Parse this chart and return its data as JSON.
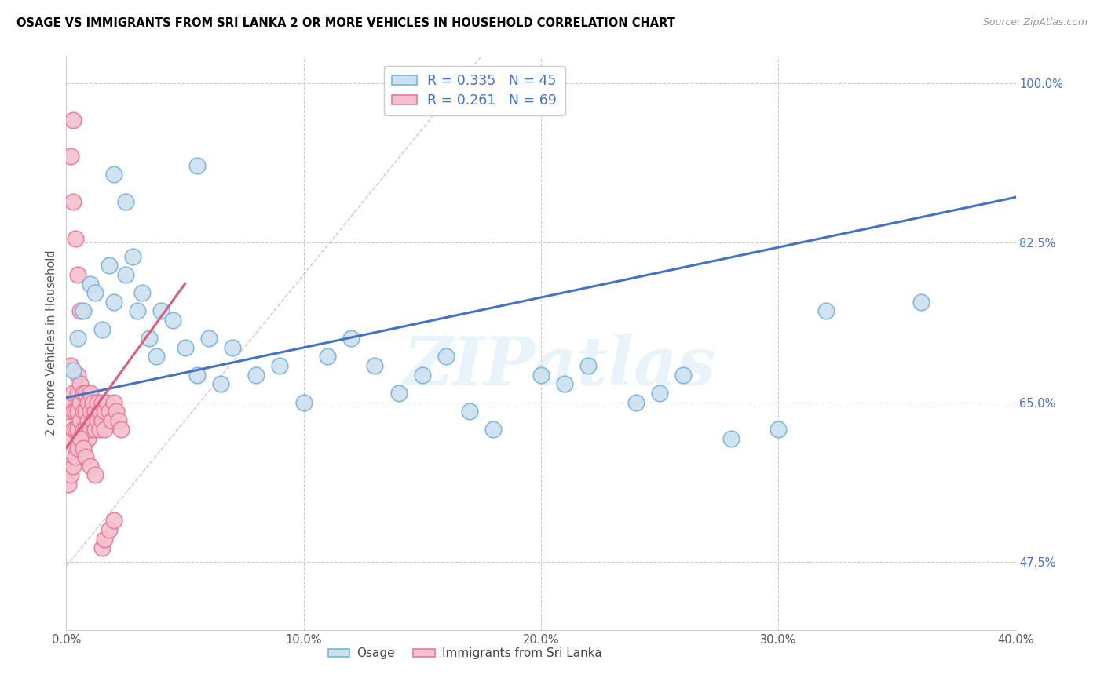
{
  "title": "OSAGE VS IMMIGRANTS FROM SRI LANKA 2 OR MORE VEHICLES IN HOUSEHOLD CORRELATION CHART",
  "source": "Source: ZipAtlas.com",
  "ylabel": "2 or more Vehicles in Household",
  "xlim": [
    0.0,
    0.4
  ],
  "ylim": [
    0.4,
    1.03
  ],
  "ytick_vals": [
    0.475,
    0.65,
    0.825,
    1.0
  ],
  "ytick_labels": [
    "47.5%",
    "65.0%",
    "82.5%",
    "100.0%"
  ],
  "xtick_vals": [
    0.0,
    0.1,
    0.2,
    0.3,
    0.4
  ],
  "xtick_labels": [
    "0.0%",
    "10.0%",
    "20.0%",
    "30.0%",
    "40.0%"
  ],
  "osage_edge_color": "#7ab3d9",
  "osage_face_color": "#cce0f0",
  "srilanka_edge_color": "#e8799a",
  "srilanka_face_color": "#f5c0ce",
  "trend_osage_color": "#4472c4",
  "trend_srilanka_color": "#d9607a",
  "diagonal_color": "#d0a0a8",
  "grid_color": "#cccccc",
  "R_osage": 0.335,
  "N_osage": 45,
  "R_srilanka": 0.261,
  "N_srilanka": 69,
  "watermark_text": "ZIPatlas",
  "osage_x": [
    0.003,
    0.005,
    0.007,
    0.01,
    0.012,
    0.015,
    0.018,
    0.02,
    0.025,
    0.028,
    0.03,
    0.032,
    0.035,
    0.038,
    0.04,
    0.045,
    0.05,
    0.055,
    0.06,
    0.065,
    0.07,
    0.08,
    0.09,
    0.1,
    0.11,
    0.12,
    0.13,
    0.14,
    0.15,
    0.16,
    0.17,
    0.18,
    0.2,
    0.21,
    0.22,
    0.24,
    0.25,
    0.26,
    0.28,
    0.3,
    0.02,
    0.025,
    0.055,
    0.32,
    0.36
  ],
  "osage_y": [
    0.685,
    0.72,
    0.75,
    0.78,
    0.77,
    0.73,
    0.8,
    0.76,
    0.79,
    0.81,
    0.75,
    0.77,
    0.72,
    0.7,
    0.75,
    0.74,
    0.71,
    0.68,
    0.72,
    0.67,
    0.71,
    0.68,
    0.69,
    0.65,
    0.7,
    0.72,
    0.69,
    0.66,
    0.68,
    0.7,
    0.64,
    0.62,
    0.68,
    0.67,
    0.69,
    0.65,
    0.66,
    0.68,
    0.61,
    0.62,
    0.9,
    0.87,
    0.91,
    0.75,
    0.76
  ],
  "srilanka_x": [
    0.001,
    0.001,
    0.002,
    0.002,
    0.002,
    0.003,
    0.003,
    0.003,
    0.003,
    0.004,
    0.004,
    0.004,
    0.005,
    0.005,
    0.005,
    0.005,
    0.006,
    0.006,
    0.006,
    0.007,
    0.007,
    0.007,
    0.008,
    0.008,
    0.008,
    0.009,
    0.009,
    0.009,
    0.01,
    0.01,
    0.01,
    0.011,
    0.011,
    0.012,
    0.012,
    0.013,
    0.013,
    0.014,
    0.014,
    0.015,
    0.015,
    0.016,
    0.016,
    0.017,
    0.018,
    0.019,
    0.02,
    0.021,
    0.022,
    0.023,
    0.001,
    0.002,
    0.003,
    0.004,
    0.005,
    0.006,
    0.007,
    0.008,
    0.01,
    0.012,
    0.015,
    0.016,
    0.018,
    0.02,
    0.002,
    0.003,
    0.004,
    0.005,
    0.006
  ],
  "srilanka_y": [
    0.64,
    0.58,
    0.69,
    0.65,
    0.61,
    0.66,
    0.64,
    0.62,
    0.96,
    0.64,
    0.62,
    0.6,
    0.68,
    0.66,
    0.64,
    0.62,
    0.67,
    0.65,
    0.63,
    0.66,
    0.64,
    0.62,
    0.66,
    0.64,
    0.62,
    0.65,
    0.63,
    0.61,
    0.66,
    0.64,
    0.62,
    0.65,
    0.63,
    0.64,
    0.62,
    0.65,
    0.63,
    0.64,
    0.62,
    0.65,
    0.63,
    0.64,
    0.62,
    0.65,
    0.64,
    0.63,
    0.65,
    0.64,
    0.63,
    0.62,
    0.56,
    0.57,
    0.58,
    0.59,
    0.6,
    0.61,
    0.6,
    0.59,
    0.58,
    0.57,
    0.49,
    0.5,
    0.51,
    0.52,
    0.92,
    0.87,
    0.83,
    0.79,
    0.75
  ]
}
